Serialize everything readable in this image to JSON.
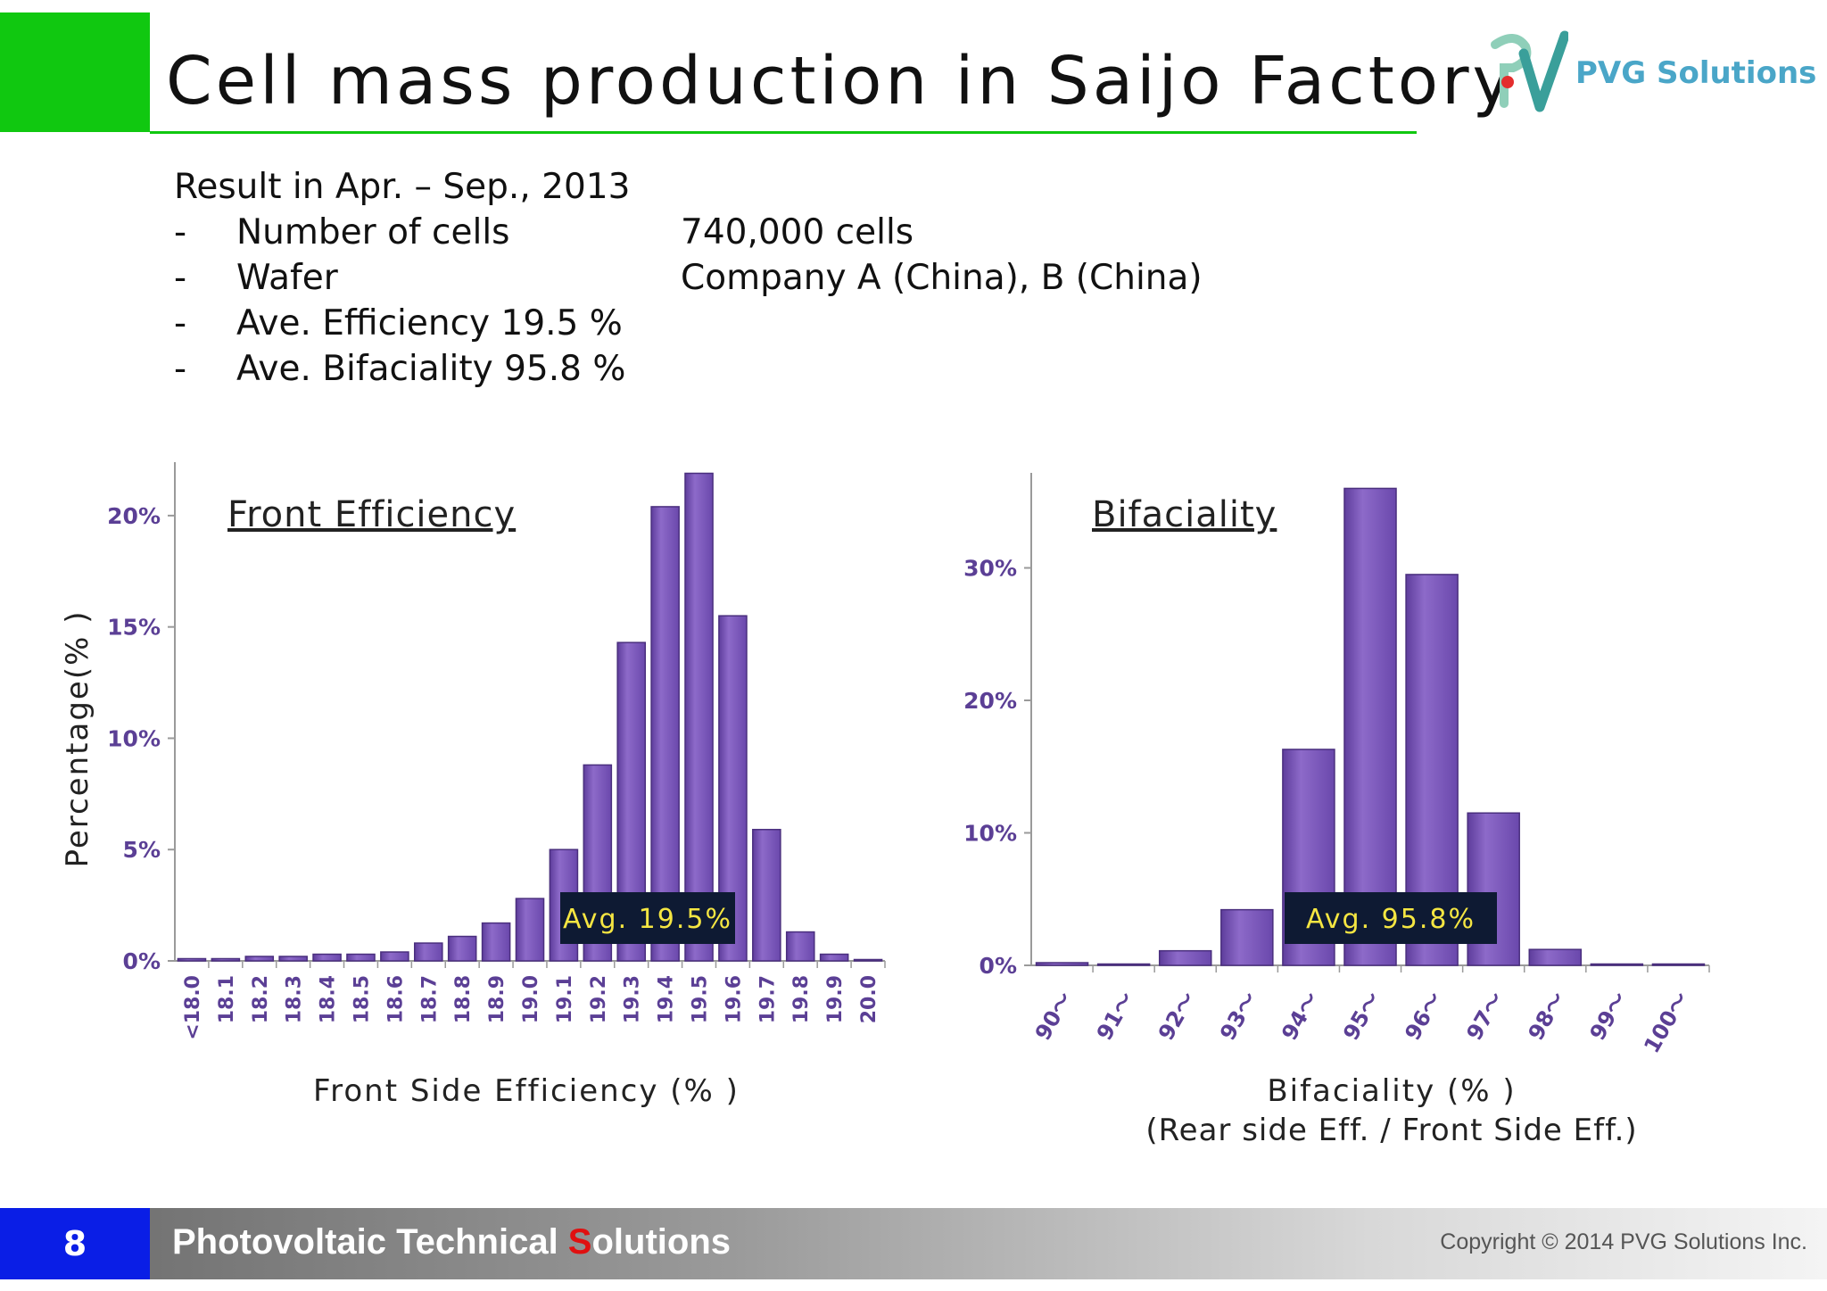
{
  "slide": {
    "title": "Cell mass production in Saijo Factory",
    "logo_text": "PVG Solutions",
    "summary": {
      "heading": "Result in Apr. – Sep., 2013",
      "items": [
        {
          "bullet": "-",
          "label": "Number of cells",
          "value": "740,000 cells"
        },
        {
          "bullet": "-",
          "label": "Wafer",
          "value": "Company A (China), B (China)"
        },
        {
          "bullet": "-",
          "label": "Ave. Efficiency 19.5 %",
          "value": ""
        },
        {
          "bullet": "-",
          "label": "Ave. Bifaciality 95.8 %",
          "value": ""
        }
      ]
    },
    "footer": {
      "page_number": "8",
      "tagline_before": "Photovoltaic Technical ",
      "tagline_highlight": "S",
      "tagline_after": "olutions",
      "copyright": "Copyright © 2014 PVG Solutions Inc."
    }
  },
  "colors": {
    "accent_green": "#10c810",
    "bar_purple": "#7a56b8",
    "bar_edge": "#4a2f7e",
    "avg_box_bg": "#0e1a33",
    "avg_box_text": "#f5e642",
    "page_blue": "#0a1ee6",
    "highlight_red": "#e01010",
    "tick_label_purple": "#5b3f95"
  },
  "chart_data": [
    {
      "type": "bar",
      "title": "Front Efficiency",
      "xlabel": "Front Side Efficiency (% )",
      "ylabel": "Percentage(% )",
      "categories": [
        "<18.0",
        "18.1",
        "18.2",
        "18.3",
        "18.4",
        "18.5",
        "18.6",
        "18.7",
        "18.8",
        "18.9",
        "19.0",
        "19.1",
        "19.2",
        "19.3",
        "19.4",
        "19.5",
        "19.6",
        "19.7",
        "19.8",
        "19.9",
        "20.0"
      ],
      "values": [
        0.1,
        0.1,
        0.2,
        0.2,
        0.3,
        0.3,
        0.4,
        0.8,
        1.1,
        1.7,
        2.8,
        5.0,
        8.8,
        14.3,
        20.4,
        21.9,
        15.5,
        5.9,
        1.3,
        0.3,
        0
      ],
      "y_ticks": [
        "0%",
        "5%",
        "10%",
        "15%",
        "20%"
      ],
      "ylim": [
        0,
        22
      ],
      "annotation": "Avg. 19.5%"
    },
    {
      "type": "bar",
      "title": "Bifaciality",
      "xlabel": "Bifaciality (% )",
      "xlabel2": "(Rear side Eff. / Front Side Eff.)",
      "categories": [
        "90～",
        "91～",
        "92～",
        "93～",
        "94～",
        "95～",
        "96～",
        "97～",
        "98～",
        "99～",
        "100～"
      ],
      "values": [
        0.2,
        0.1,
        1.1,
        4.2,
        16.3,
        36.0,
        29.5,
        11.5,
        1.2,
        0.1,
        0.1
      ],
      "y_ticks": [
        "0%",
        "10%",
        "20%",
        "30%"
      ],
      "ylim": [
        0,
        36.5
      ],
      "annotation": "Avg. 95.8%"
    }
  ]
}
